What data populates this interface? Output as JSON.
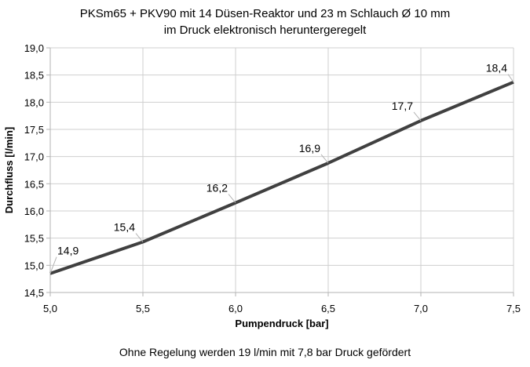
{
  "chart_data": {
    "type": "line",
    "title_lines": [
      "PKSm65 + PKV90 mit 14 Düsen-Reaktor und 23 m Schlauch Ø 10 mm",
      "im Druck elektronisch heruntergeregelt"
    ],
    "xlabel": "Pumpendruck [bar]",
    "ylabel": "Durchfluss [l/min]",
    "xlim": [
      5.0,
      7.5
    ],
    "ylim": [
      14.5,
      19.0
    ],
    "x_ticks": [
      "5,0",
      "5,5",
      "6,0",
      "6,5",
      "7,0",
      "7,5"
    ],
    "y_ticks": [
      "14,5",
      "15,0",
      "15,5",
      "16,0",
      "16,5",
      "17,0",
      "17,5",
      "18,0",
      "18,5",
      "19,0"
    ],
    "grid": true,
    "legend": "none",
    "series": [
      {
        "color": "#404040",
        "x": [
          5.0,
          5.5,
          6.0,
          6.5,
          7.0,
          7.5
        ],
        "y": [
          14.85,
          15.43,
          16.15,
          16.88,
          17.66,
          18.37
        ],
        "labels": [
          "14,9",
          "15,4",
          "16,2",
          "16,9",
          "17,7",
          "18,4"
        ]
      }
    ],
    "footnote": "Ohne Regelung werden 19 l/min mit 7,8 bar Druck gefördert"
  }
}
